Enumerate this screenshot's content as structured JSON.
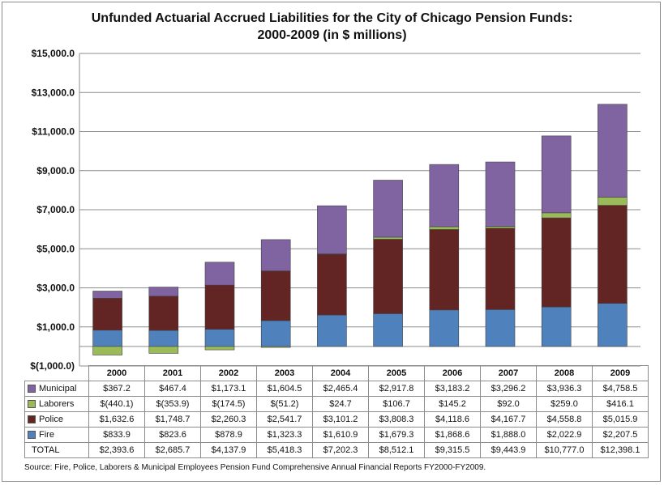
{
  "chart_data": {
    "type": "bar",
    "stacked": true,
    "title": "Unfunded Actuarial Accrued Liabilities for the City of Chicago Pension Funds:",
    "subtitle": "2000-2009 (in $ millions)",
    "categories": [
      "2000",
      "2001",
      "2002",
      "2003",
      "2004",
      "2005",
      "2006",
      "2007",
      "2008",
      "2009"
    ],
    "series": [
      {
        "name": "Fire",
        "color": "#4f81bd",
        "values": [
          833.9,
          823.6,
          878.9,
          1323.3,
          1610.9,
          1679.3,
          1868.6,
          1888.0,
          2022.9,
          2207.5
        ],
        "labels": [
          "$833.9",
          "$823.6",
          "$878.9",
          "$1,323.3",
          "$1,610.9",
          "$1,679.3",
          "$1,868.6",
          "$1,888.0",
          "$2,022.9",
          "$2,207.5"
        ]
      },
      {
        "name": "Police",
        "color": "#632523",
        "values": [
          1632.6,
          1748.7,
          2260.3,
          2541.7,
          3101.2,
          3808.3,
          4118.6,
          4167.7,
          4558.8,
          5015.9
        ],
        "labels": [
          "$1,632.6",
          "$1,748.7",
          "$2,260.3",
          "$2,541.7",
          "$3,101.2",
          "$3,808.3",
          "$4,118.6",
          "$4,167.7",
          "$4,558.8",
          "$5,015.9"
        ]
      },
      {
        "name": "Laborers",
        "color": "#9bbb59",
        "values": [
          -440.1,
          -353.9,
          -174.5,
          -51.2,
          24.7,
          106.7,
          145.2,
          92.0,
          259.0,
          416.1
        ],
        "labels": [
          "$(440.1)",
          "$(353.9)",
          "$(174.5)",
          "$(51.2)",
          "$24.7",
          "$106.7",
          "$145.2",
          "$92.0",
          "$259.0",
          "$416.1"
        ]
      },
      {
        "name": "Municipal",
        "color": "#8064a2",
        "values": [
          367.2,
          467.4,
          1173.1,
          1604.5,
          2465.4,
          2917.8,
          3183.2,
          3296.2,
          3936.3,
          4758.5
        ],
        "labels": [
          "$367.2",
          "$467.4",
          "$1,173.1",
          "$1,604.5",
          "$2,465.4",
          "$2,917.8",
          "$3,183.2",
          "$3,296.2",
          "$3,936.3",
          "$4,758.5"
        ]
      }
    ],
    "total": {
      "name": "TOTAL",
      "labels": [
        "$2,393.6",
        "$2,685.7",
        "$4,137.9",
        "$5,418.3",
        "$7,202.3",
        "$8,512.1",
        "$9,315.5",
        "$9,443.9",
        "$10,777.0",
        "$12,398.1"
      ]
    },
    "ylim": [
      -1000,
      15000
    ],
    "yticks": [
      -1000,
      1000,
      3000,
      5000,
      7000,
      9000,
      11000,
      13000,
      15000
    ],
    "ytick_labels": [
      "$(1,000.0)",
      "$1,000.0",
      "$3,000.0",
      "$5,000.0",
      "$7,000.0",
      "$9,000.0",
      "$11,000.0",
      "$13,000.0",
      "$15,000.0"
    ],
    "grid": true,
    "legend": "data-table",
    "source": "Source: Fire, Police, Laborers & Municipal Employees Pension Fund Comprehensive Annual Financial Reports FY2000-FY2009."
  }
}
